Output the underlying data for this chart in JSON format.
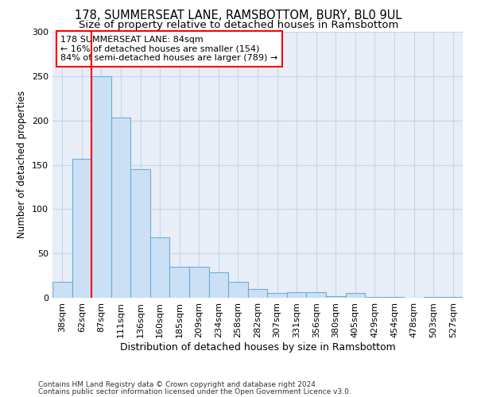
{
  "title1": "178, SUMMERSEAT LANE, RAMSBOTTOM, BURY, BL0 9UL",
  "title2": "Size of property relative to detached houses in Ramsbottom",
  "xlabel": "Distribution of detached houses by size in Ramsbottom",
  "ylabel": "Number of detached properties",
  "categories": [
    "38sqm",
    "62sqm",
    "87sqm",
    "111sqm",
    "136sqm",
    "160sqm",
    "185sqm",
    "209sqm",
    "234sqm",
    "258sqm",
    "282sqm",
    "307sqm",
    "331sqm",
    "356sqm",
    "380sqm",
    "405sqm",
    "429sqm",
    "454sqm",
    "478sqm",
    "503sqm",
    "527sqm"
  ],
  "values": [
    18,
    157,
    250,
    203,
    145,
    68,
    35,
    35,
    29,
    18,
    10,
    5,
    6,
    6,
    2,
    5,
    1,
    1,
    0,
    1,
    1
  ],
  "bar_color": "#cce0f5",
  "bar_edge_color": "#6aaed6",
  "annotation_line1": "178 SUMMERSEAT LANE: 84sqm",
  "annotation_line2": "← 16% of detached houses are smaller (154)",
  "annotation_line3": "84% of semi-detached houses are larger (789) →",
  "annotation_box_facecolor": "white",
  "annotation_box_edgecolor": "red",
  "red_line_color": "red",
  "footer1": "Contains HM Land Registry data © Crown copyright and database right 2024.",
  "footer2": "Contains public sector information licensed under the Open Government Licence v3.0.",
  "ylim": [
    0,
    300
  ],
  "yticks": [
    0,
    50,
    100,
    150,
    200,
    250,
    300
  ],
  "title1_fontsize": 10.5,
  "title2_fontsize": 9.5,
  "ylabel_fontsize": 8.5,
  "xlabel_fontsize": 9,
  "tick_fontsize": 8,
  "annotation_fontsize": 8,
  "footer_fontsize": 6.5,
  "bg_color": "#e8eef8",
  "grid_color": "#c8d4e8",
  "fig_bg": "#ffffff"
}
